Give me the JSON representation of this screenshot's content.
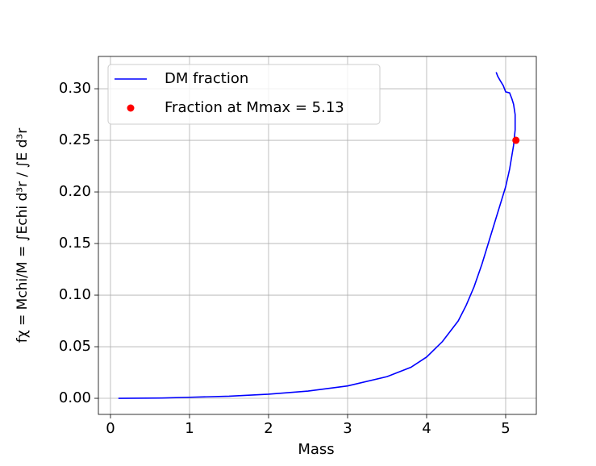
{
  "chart_data": {
    "type": "line",
    "xlabel": "Mass",
    "ylabel": "fχ = Mchi/M = ∫Echi d³r / ∫E d³r",
    "xlim": [
      -0.153,
      5.388
    ],
    "ylim": [
      -0.0156,
      0.3313
    ],
    "xticks": [
      0,
      1,
      2,
      3,
      4,
      5
    ],
    "yticks": [
      {
        "value": 0,
        "label": "0.00"
      },
      {
        "value": 0.05,
        "label": "0.05"
      },
      {
        "value": 0.1,
        "label": "0.10"
      },
      {
        "value": 0.15,
        "label": "0.15"
      },
      {
        "value": 0.2,
        "label": "0.20"
      },
      {
        "value": 0.25,
        "label": "0.25"
      },
      {
        "value": 0.3,
        "label": "0.30"
      }
    ],
    "grid": true,
    "legend": "upper left",
    "series": [
      {
        "name": "DM fraction",
        "color": "#0000ff",
        "mark": "line",
        "x": [
          0.1,
          0.65,
          1,
          1.5,
          2,
          2.5,
          3,
          3.5,
          3.8,
          4.0,
          4.2,
          4.4,
          4.5,
          4.6,
          4.7,
          4.8,
          4.9,
          5.0,
          5.05,
          5.1,
          5.12,
          5.12,
          5.1,
          5.08,
          5.05,
          5.0,
          4.97,
          4.93,
          4.9,
          4.88
        ],
        "values": [
          0,
          0.0003,
          0.001,
          0.002,
          0.004,
          0.007,
          0.012,
          0.021,
          0.03,
          0.04,
          0.055,
          0.075,
          0.09,
          0.108,
          0.13,
          0.155,
          0.18,
          0.205,
          0.222,
          0.245,
          0.26,
          0.275,
          0.285,
          0.29,
          0.296,
          0.297,
          0.303,
          0.308,
          0.312,
          0.316
        ]
      },
      {
        "name": "Fraction at Mmax = 5.13",
        "color": "#ff0000",
        "mark": "point",
        "x": [
          5.13
        ],
        "values": [
          0.25
        ]
      }
    ]
  }
}
